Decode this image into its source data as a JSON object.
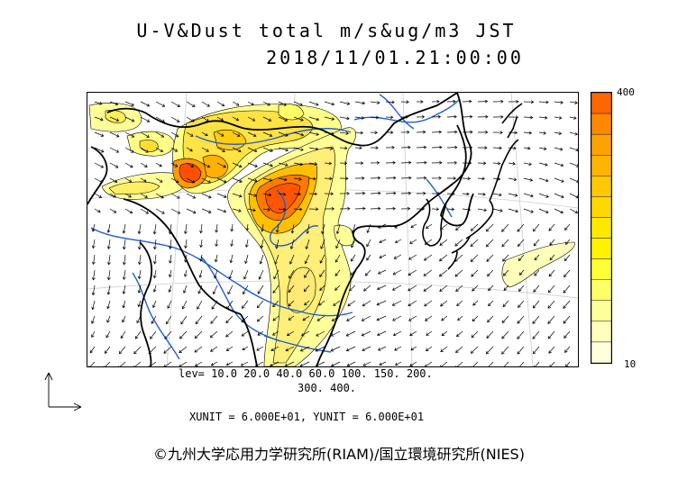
{
  "title": {
    "line1": "U-V&Dust total m/s&ug/m3 JST",
    "line2": "2018/11/01.21:00:00"
  },
  "colorbar": {
    "max_label": "400",
    "min_label": "10",
    "colors": [
      "#ff6600",
      "#ff8800",
      "#ffa200",
      "#ffb400",
      "#ffc800",
      "#ffd800",
      "#ffe800",
      "#fff200",
      "#ffff33",
      "#ffff66",
      "#ffff99",
      "#ffffbb",
      "#ffffdd"
    ]
  },
  "levels": {
    "line1": "lev= 10.0 20.0 40.0 60.0 100. 150. 200.",
    "line2": "300. 400."
  },
  "units": "XUNIT = 6.000E+01, YUNIT = 6.000E+01",
  "credit": "©九州大学応用力学研究所(RIAM)/国立環境研究所(NIES)",
  "icons": {
    "axes": "xy-axes-icon"
  }
}
